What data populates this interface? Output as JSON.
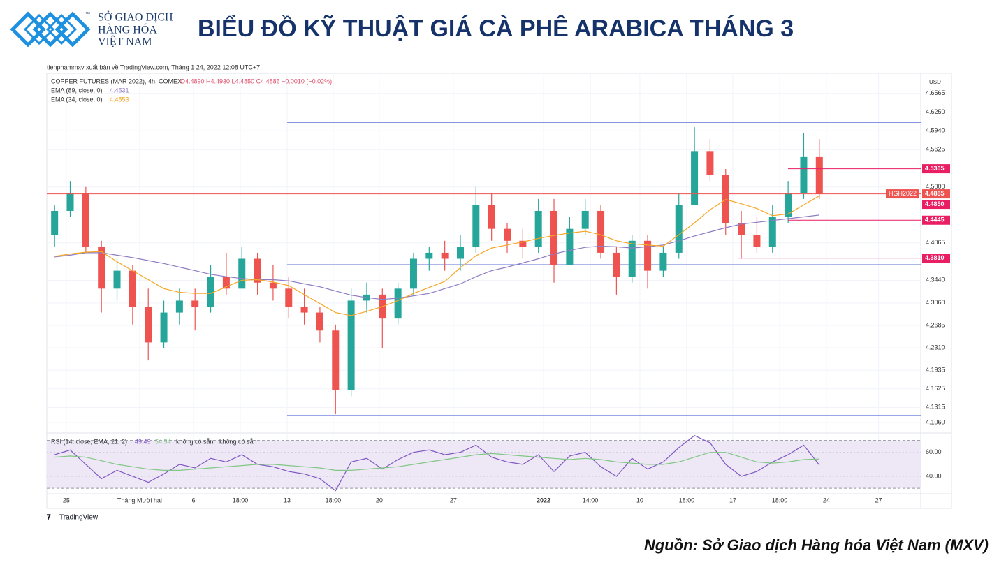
{
  "header": {
    "logo_lines": [
      "SỞ GIAO DỊCH",
      "HÀNG HÓA",
      "VIỆT NAM"
    ],
    "trademark": "™",
    "title": "BIỂU ĐỒ KỸ THUẬT GIÁ CÀ PHÊ ARABICA THÁNG 3"
  },
  "publisher": "tienphammxv xuất bản về TradingView.com, Tháng 1 24, 2022 12:08 UTC+7",
  "brand": "TradingView",
  "source": "Nguồn: Sở Giao dịch Hàng hóa Việt Nam (MXV)",
  "chart_data": [
    {
      "type": "candlestick",
      "symbol_line": "COPPER FUTURES (MAR 2022), 4h, COMEX",
      "quote_line": "O4.4890 H4.4930 L4.4850 C4.4885 −0.0010 (−0.02%)",
      "currency": "USD",
      "current_label": "HGH2022",
      "up_color": "#26a69a",
      "down_color": "#ef5350",
      "ohlc": {
        "open": [
          4.42,
          4.46,
          4.49,
          4.4,
          4.33,
          4.36,
          4.3,
          4.24,
          4.29,
          4.31,
          4.3,
          4.35,
          4.33,
          4.38,
          4.34,
          4.33,
          4.3,
          4.29,
          4.26,
          4.16,
          4.31,
          4.32,
          4.28,
          4.33,
          4.38,
          4.39,
          4.38,
          4.4,
          4.47,
          4.43,
          4.41,
          4.4,
          4.46,
          4.37,
          4.43,
          4.46,
          4.39,
          4.35,
          4.41,
          4.36,
          4.39,
          4.47,
          4.56,
          4.52,
          4.44,
          4.42,
          4.4,
          4.45,
          4.49,
          4.55
        ],
        "high": [
          4.47,
          4.51,
          4.5,
          4.41,
          4.38,
          4.37,
          4.33,
          4.31,
          4.33,
          4.33,
          4.37,
          4.39,
          4.4,
          4.39,
          4.37,
          4.35,
          4.33,
          4.3,
          4.27,
          4.33,
          4.34,
          4.33,
          4.34,
          4.39,
          4.4,
          4.41,
          4.42,
          4.5,
          4.49,
          4.44,
          4.43,
          4.48,
          4.48,
          4.45,
          4.48,
          4.47,
          4.4,
          4.42,
          4.42,
          4.4,
          4.49,
          4.6,
          4.58,
          4.53,
          4.46,
          4.45,
          4.47,
          4.51,
          4.59,
          4.58
        ],
        "low": [
          4.4,
          4.45,
          4.39,
          4.29,
          4.31,
          4.27,
          4.21,
          4.23,
          4.27,
          4.26,
          4.29,
          4.32,
          4.33,
          4.32,
          4.31,
          4.28,
          4.27,
          4.24,
          4.12,
          4.15,
          4.29,
          4.23,
          4.27,
          4.32,
          4.36,
          4.36,
          4.36,
          4.39,
          4.41,
          4.39,
          4.38,
          4.39,
          4.34,
          4.37,
          4.42,
          4.38,
          4.32,
          4.34,
          4.33,
          4.35,
          4.38,
          4.47,
          4.51,
          4.42,
          4.38,
          4.39,
          4.39,
          4.44,
          4.48,
          4.48
        ],
        "close": [
          4.46,
          4.49,
          4.4,
          4.33,
          4.36,
          4.3,
          4.24,
          4.29,
          4.31,
          4.3,
          4.35,
          4.33,
          4.38,
          4.34,
          4.33,
          4.3,
          4.29,
          4.26,
          4.16,
          4.31,
          4.32,
          4.28,
          4.33,
          4.38,
          4.39,
          4.38,
          4.4,
          4.47,
          4.43,
          4.41,
          4.4,
          4.46,
          4.37,
          4.43,
          4.46,
          4.39,
          4.35,
          4.41,
          4.36,
          4.39,
          4.47,
          4.56,
          4.52,
          4.44,
          4.42,
          4.4,
          4.45,
          4.49,
          4.55,
          4.4885
        ]
      },
      "series": [
        {
          "name": "EMA (89, close, 0)",
          "color": "#8e7cc3",
          "values": [
            4.383,
            4.386,
            4.39,
            4.39,
            4.386,
            4.382,
            4.377,
            4.372,
            4.366,
            4.36,
            4.354,
            4.35,
            4.347,
            4.345,
            4.345,
            4.343,
            4.338,
            4.333,
            4.326,
            4.319,
            4.315,
            4.312,
            4.314,
            4.318,
            4.322,
            4.33,
            4.338,
            4.35,
            4.36,
            4.366,
            4.373,
            4.38,
            4.388,
            4.394,
            4.399,
            4.401,
            4.4,
            4.398,
            4.4,
            4.403,
            4.41,
            4.418,
            4.425,
            4.432,
            4.438,
            4.441,
            4.444,
            4.447,
            4.45,
            4.4531
          ]
        },
        {
          "name": "EMA (34, close, 0)",
          "color": "#f5a623",
          "values": [
            4.384,
            4.388,
            4.391,
            4.392,
            4.375,
            4.36,
            4.345,
            4.33,
            4.324,
            4.322,
            4.322,
            4.333,
            4.344,
            4.345,
            4.341,
            4.335,
            4.32,
            4.305,
            4.29,
            4.285,
            4.292,
            4.3,
            4.31,
            4.322,
            4.332,
            4.342,
            4.365,
            4.385,
            4.398,
            4.403,
            4.408,
            4.414,
            4.419,
            4.423,
            4.426,
            4.42,
            4.41,
            4.405,
            4.403,
            4.401,
            4.42,
            4.44,
            4.462,
            4.479,
            4.472,
            4.464,
            4.452,
            4.455,
            4.47,
            4.4853
          ]
        }
      ],
      "levels": {
        "color": "#e91e63",
        "values": [
          4.5305,
          4.485,
          4.4445,
          4.381
        ],
        "value_labels": [
          "4.5305",
          "4.4850",
          "4.4445",
          "4.3810"
        ]
      },
      "trend_lines": {
        "color": "#5b6fd6",
        "values": [
          4.608,
          4.37,
          4.118
        ]
      },
      "current_color": "#ef5350",
      "xlim": [
        0,
        56
      ],
      "xticks": [
        {
          "value": 1.25,
          "label": "25"
        },
        {
          "value": 5.95,
          "label": "Tháng Mười hai"
        },
        {
          "value": 9.4,
          "label": "6"
        },
        {
          "value": 12.4,
          "label": "18:00"
        },
        {
          "value": 15.4,
          "label": "13"
        },
        {
          "value": 18.35,
          "label": "18:00"
        },
        {
          "value": 21.3,
          "label": "20"
        },
        {
          "value": 26.05,
          "label": "27"
        },
        {
          "value": 31.83,
          "label": "2022"
        },
        {
          "value": 34.83,
          "label": "14:00"
        },
        {
          "value": 38.0,
          "label": "10"
        },
        {
          "value": 41.0,
          "label": "18:00"
        },
        {
          "value": 43.96,
          "label": "17"
        },
        {
          "value": 46.96,
          "label": "18:00"
        },
        {
          "value": 49.95,
          "label": "24"
        },
        {
          "value": 53.3,
          "label": "27"
        }
      ],
      "ylim": [
        4.091,
        4.69
      ],
      "yticks": [
        {
          "value": 4.6565,
          "label": "4.6565"
        },
        {
          "value": 4.625,
          "label": "4.6250"
        },
        {
          "value": 4.594,
          "label": "4.5940"
        },
        {
          "value": 4.5625,
          "label": "4.5625"
        },
        {
          "value": 4.5,
          "label": "4.5000"
        },
        {
          "value": 4.4065,
          "label": "4.4065"
        },
        {
          "value": 4.344,
          "label": "4.3440"
        },
        {
          "value": 4.306,
          "label": "4.3060"
        },
        {
          "value": 4.2685,
          "label": "4.2685"
        },
        {
          "value": 4.231,
          "label": "4.2310"
        },
        {
          "value": 4.1935,
          "label": "4.1935"
        },
        {
          "value": 4.1625,
          "label": "4.1625"
        },
        {
          "value": 4.1315,
          "label": "4.1315"
        },
        {
          "value": 4.106,
          "label": "4.1060"
        }
      ],
      "grid": true
    },
    {
      "type": "line",
      "title": "RSI (14, close, EMA, 21, 2)",
      "na_labels": [
        "không có sẵn",
        "không có sẵn"
      ],
      "series": [
        {
          "color": "#7e57c2",
          "values": [
            58,
            62,
            50,
            38,
            45,
            40,
            35,
            42,
            50,
            47,
            55,
            52,
            58,
            50,
            48,
            44,
            42,
            38,
            28,
            52,
            55,
            46,
            54,
            60,
            62,
            58,
            60,
            66,
            56,
            52,
            50,
            58,
            44,
            57,
            60,
            48,
            40,
            55,
            46,
            52,
            64,
            74,
            68,
            50,
            40,
            44,
            52,
            58,
            66,
            49.49
          ]
        },
        {
          "color": "#81c784",
          "values": [
            56,
            57,
            56,
            53,
            50,
            48,
            46,
            45,
            45,
            46,
            47,
            48,
            49,
            50,
            50,
            49,
            48,
            47,
            45,
            45,
            46,
            47,
            48,
            50,
            52,
            54,
            56,
            58,
            59,
            58,
            57,
            56,
            55,
            54,
            55,
            54,
            52,
            51,
            50,
            50,
            52,
            56,
            60,
            60,
            56,
            52,
            51,
            52,
            54,
            54.54
          ]
        }
      ],
      "bands": [
        70,
        30
      ],
      "band_color": "#ede7f6",
      "ylim": [
        26,
        75
      ],
      "yticks": [
        {
          "value": 60,
          "label": "60.00"
        },
        {
          "value": 40,
          "label": "40.00"
        }
      ]
    }
  ]
}
